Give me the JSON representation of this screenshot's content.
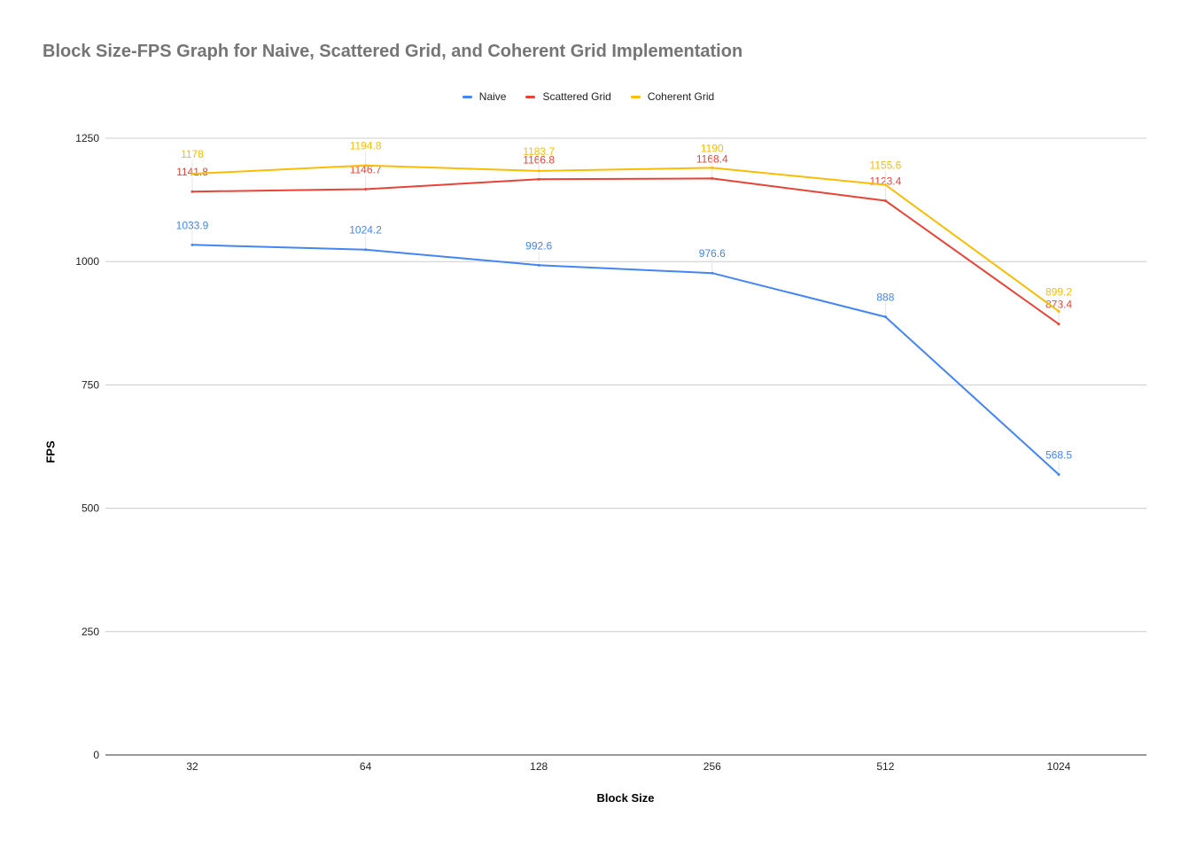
{
  "chart_data": {
    "type": "line",
    "title": "Block Size-FPS Graph for Naive, Scattered Grid, and Coherent Grid Implementation",
    "xlabel": "Block Size",
    "ylabel": "FPS",
    "categories": [
      "32",
      "64",
      "128",
      "256",
      "512",
      "1024"
    ],
    "ylim": [
      0,
      1250
    ],
    "yticks": [
      "0",
      "250",
      "500",
      "750",
      "1000",
      "1250"
    ],
    "grid": true,
    "legend_position": "top",
    "series": [
      {
        "name": "Naive",
        "color": "#4285f4",
        "values": [
          1033.9,
          1024.2,
          992.6,
          976.6,
          888,
          568.5
        ],
        "labels": [
          "1033.9",
          "1024.2",
          "992.6",
          "976.6",
          "888",
          "568.5"
        ]
      },
      {
        "name": "Scattered Grid",
        "color": "#ea4335",
        "values": [
          1141.8,
          1146.7,
          1166.8,
          1168.4,
          1123.4,
          873.4
        ],
        "labels": [
          "1141.8",
          "1146.7",
          "1166.8",
          "1168.4",
          "1123.4",
          "873.4"
        ]
      },
      {
        "name": "Coherent Grid",
        "color": "#fbbc04",
        "values": [
          1178,
          1194.8,
          1183.7,
          1190,
          1155.6,
          899.2
        ],
        "labels": [
          "1178",
          "1194.8",
          "1183.7",
          "1190",
          "1155.6",
          "899.2"
        ]
      }
    ]
  }
}
